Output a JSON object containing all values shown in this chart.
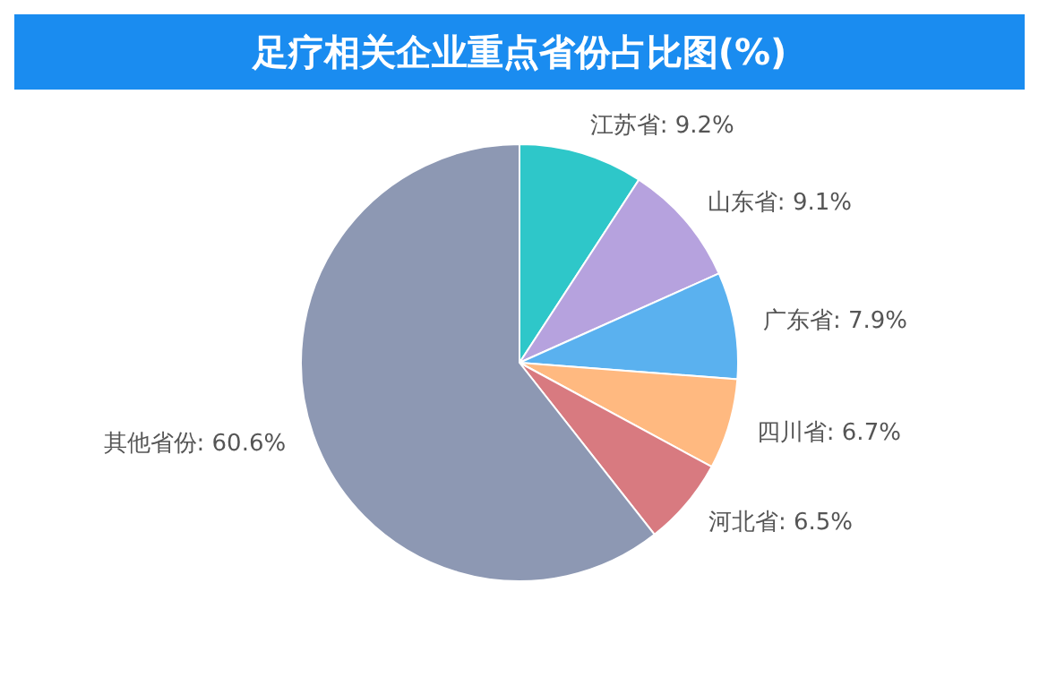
{
  "chart_data": {
    "type": "pie",
    "title": "足疗相关企业重点省份占比图(%)",
    "categories": [
      "江苏省",
      "山东省",
      "广东省",
      "四川省",
      "河北省",
      "其他省份"
    ],
    "values": [
      9.2,
      9.1,
      7.9,
      6.7,
      6.5,
      60.6
    ],
    "value_labels": [
      "9.2%",
      "9.1%",
      "7.9%",
      "6.7%",
      "6.5%",
      "60.6%"
    ],
    "colors": [
      "#2ec7c9",
      "#b6a2de",
      "#5ab1ef",
      "#ffb980",
      "#d87a80",
      "#8d98b3"
    ]
  }
}
